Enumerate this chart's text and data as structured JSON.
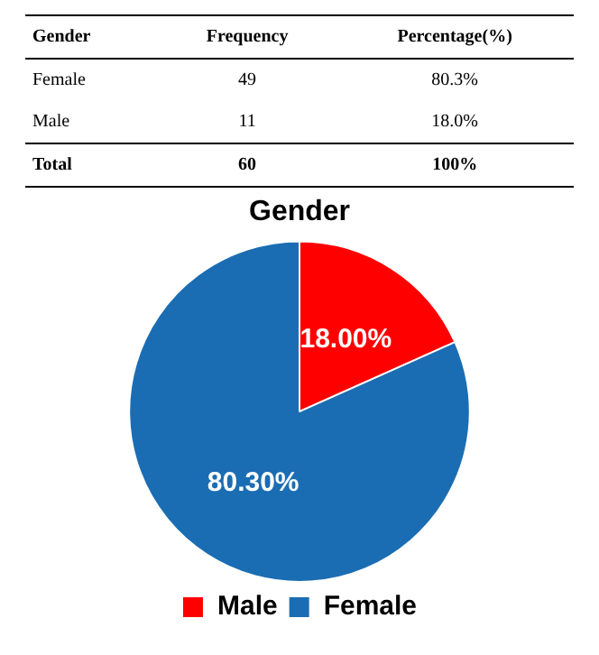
{
  "chart_data": [
    {
      "type": "other",
      "annotations": [
        "Gender",
        "Frequency",
        "Percentage(%)",
        "Female",
        "49",
        "80.3%",
        "Male",
        "11",
        "18.0%",
        "Total",
        "60",
        "100%"
      ]
    },
    {
      "type": "pie",
      "title": "Gender",
      "categories": [
        "Male",
        "Female"
      ],
      "values": [
        18.0,
        80.3
      ],
      "colors": [
        "#ff0000",
        "#1b6db3"
      ],
      "value_labels": [
        "18.00%",
        "80.30%"
      ],
      "legend": "bottom"
    }
  ]
}
